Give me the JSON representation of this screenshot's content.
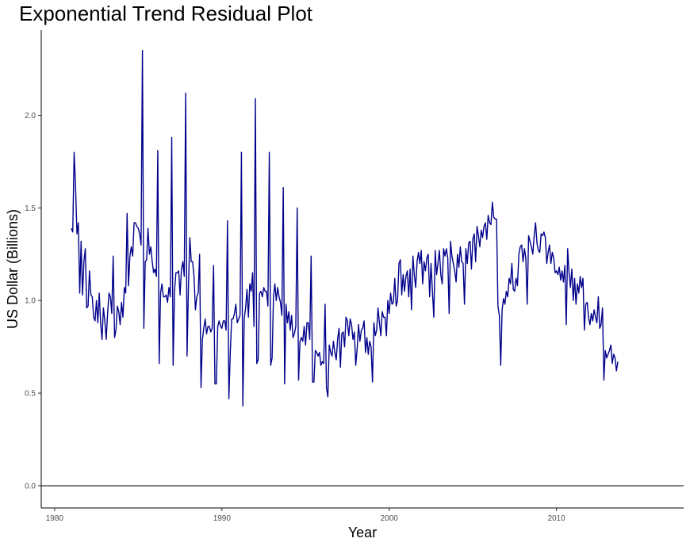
{
  "chart_data": {
    "type": "line",
    "title": "Exponential Trend Residual Plot",
    "xlabel": "Year",
    "ylabel": "US Dollar (Billions)",
    "xlim": [
      1979.2,
      2017.6
    ],
    "ylim": [
      -0.12,
      2.46
    ],
    "x_ticks": [
      1980,
      1990,
      2000,
      2010
    ],
    "x_tick_labels": [
      "1980",
      "1990",
      "2000",
      "2010"
    ],
    "y_ticks": [
      0.0,
      0.5,
      1.0,
      1.5,
      2.0
    ],
    "y_tick_labels": [
      "0.0",
      "0.5",
      "1.0",
      "1.5",
      "2.0"
    ],
    "hline": 0.0,
    "grid": false,
    "legend": "none",
    "line_color": "#00008B",
    "series": [
      {
        "x_start": 1981.0,
        "x_step": 0.08333,
        "values": [
          1.39,
          1.37,
          1.8,
          1.62,
          1.36,
          1.42,
          1.04,
          1.32,
          1.03,
          1.21,
          1.28,
          0.96,
          0.97,
          1.16,
          1.03,
          1.02,
          0.91,
          0.89,
          1.0,
          0.88,
          1.04,
          0.88,
          0.79,
          0.96,
          0.89,
          0.79,
          0.93,
          1.04,
          1.02,
          0.93,
          1.24,
          0.8,
          0.84,
          0.97,
          0.94,
          0.87,
          0.99,
          0.91,
          1.07,
          1.04,
          1.47,
          1.08,
          1.24,
          1.29,
          1.24,
          1.42,
          1.42,
          1.4,
          1.39,
          1.36,
          1.3,
          2.35,
          0.85,
          1.21,
          1.22,
          1.39,
          1.25,
          1.29,
          1.21,
          1.15,
          1.17,
          1.13,
          1.81,
          0.66,
          1.04,
          1.09,
          1.02,
          1.02,
          1.03,
          0.99,
          1.07,
          1.02,
          1.88,
          0.65,
          1.05,
          1.15,
          1.15,
          1.16,
          1.03,
          1.17,
          1.21,
          1.13,
          2.12,
          0.7,
          1.08,
          1.34,
          1.21,
          1.21,
          1.13,
          0.95,
          1.02,
          1.04,
          1.25,
          0.53,
          0.79,
          0.85,
          0.9,
          0.82,
          0.86,
          0.86,
          0.83,
          0.85,
          1.19,
          0.55,
          0.55,
          0.86,
          0.89,
          0.86,
          0.85,
          0.89,
          0.89,
          0.84,
          1.43,
          0.47,
          0.72,
          0.9,
          0.9,
          0.93,
          0.98,
          0.88,
          0.9,
          0.92,
          1.8,
          0.43,
          0.9,
          0.96,
          1.06,
          0.91,
          1.09,
          1.05,
          1.15,
          0.86,
          2.09,
          0.66,
          0.68,
          1.04,
          1.05,
          1.02,
          1.07,
          1.05,
          1.05,
          0.97,
          1.8,
          0.65,
          0.69,
          1.02,
          1.09,
          1.0,
          1.07,
          1.02,
          0.99,
          0.92,
          1.61,
          0.55,
          0.98,
          0.88,
          0.94,
          0.84,
          0.92,
          0.8,
          0.82,
          0.86,
          1.5,
          0.57,
          0.78,
          0.8,
          0.78,
          0.86,
          0.76,
          0.88,
          0.88,
          0.79,
          1.24,
          0.56,
          0.56,
          0.73,
          0.72,
          0.7,
          0.72,
          0.65,
          0.67,
          0.66,
          0.98,
          0.53,
          0.48,
          0.76,
          0.72,
          0.7,
          0.78,
          0.72,
          0.68,
          0.79,
          0.85,
          0.64,
          0.82,
          0.83,
          0.75,
          0.91,
          0.89,
          0.81,
          0.9,
          0.87,
          0.79,
          0.83,
          0.65,
          0.74,
          0.87,
          0.78,
          0.84,
          0.85,
          0.89,
          0.72,
          0.8,
          0.71,
          0.78,
          0.75,
          0.56,
          0.88,
          0.81,
          0.84,
          0.96,
          0.88,
          0.81,
          0.94,
          0.91,
          0.91,
          0.81,
          1.0,
          0.93,
          1.04,
          0.98,
          0.99,
          1.12,
          0.97,
          1.0,
          1.2,
          1.22,
          1.03,
          1.14,
          1.05,
          1.13,
          1.16,
          1.02,
          1.17,
          0.95,
          1.24,
          1.14,
          1.07,
          1.21,
          1.26,
          1.2,
          1.27,
          1.09,
          1.21,
          1.16,
          1.23,
          1.25,
          1.02,
          1.2,
          1.05,
          0.91,
          1.27,
          1.14,
          1.2,
          1.27,
          1.14,
          1.09,
          1.28,
          1.24,
          1.28,
          1.23,
          0.93,
          1.32,
          1.24,
          1.2,
          1.16,
          1.1,
          1.25,
          1.18,
          1.29,
          1.21,
          1.2,
          0.98,
          1.28,
          1.2,
          1.31,
          1.32,
          1.17,
          1.33,
          1.36,
          1.21,
          1.4,
          1.35,
          1.29,
          1.38,
          1.34,
          1.4,
          1.42,
          1.33,
          1.46,
          1.42,
          1.41,
          1.53,
          1.45,
          1.44,
          1.44,
          0.97,
          0.92,
          0.65,
          0.95,
          1.01,
          0.98,
          1.05,
          1.02,
          1.12,
          1.09,
          1.2,
          1.06,
          1.05,
          1.12,
          1.08,
          1.25,
          1.29,
          1.3,
          1.21,
          1.28,
          1.23,
          0.98,
          1.35,
          1.32,
          1.29,
          1.25,
          1.35,
          1.42,
          1.31,
          1.27,
          1.26,
          1.36,
          1.35,
          1.37,
          1.34,
          1.2,
          1.26,
          1.3,
          1.2,
          1.26,
          1.23,
          1.15,
          1.16,
          1.14,
          1.18,
          1.11,
          1.16,
          1.1,
          1.19,
          0.87,
          1.28,
          1.15,
          1.07,
          1.17,
          1.0,
          1.12,
          0.98,
          1.09,
          1.04,
          1.13,
          1.07,
          1.12,
          0.84,
          0.98,
          0.99,
          0.91,
          0.87,
          0.93,
          0.89,
          0.95,
          0.91,
          0.88,
          1.02,
          0.85,
          0.87,
          0.96,
          0.57,
          0.73,
          0.69,
          0.71,
          0.73,
          0.76,
          0.66,
          0.71,
          0.69,
          0.62,
          0.67
        ]
      }
    ]
  }
}
